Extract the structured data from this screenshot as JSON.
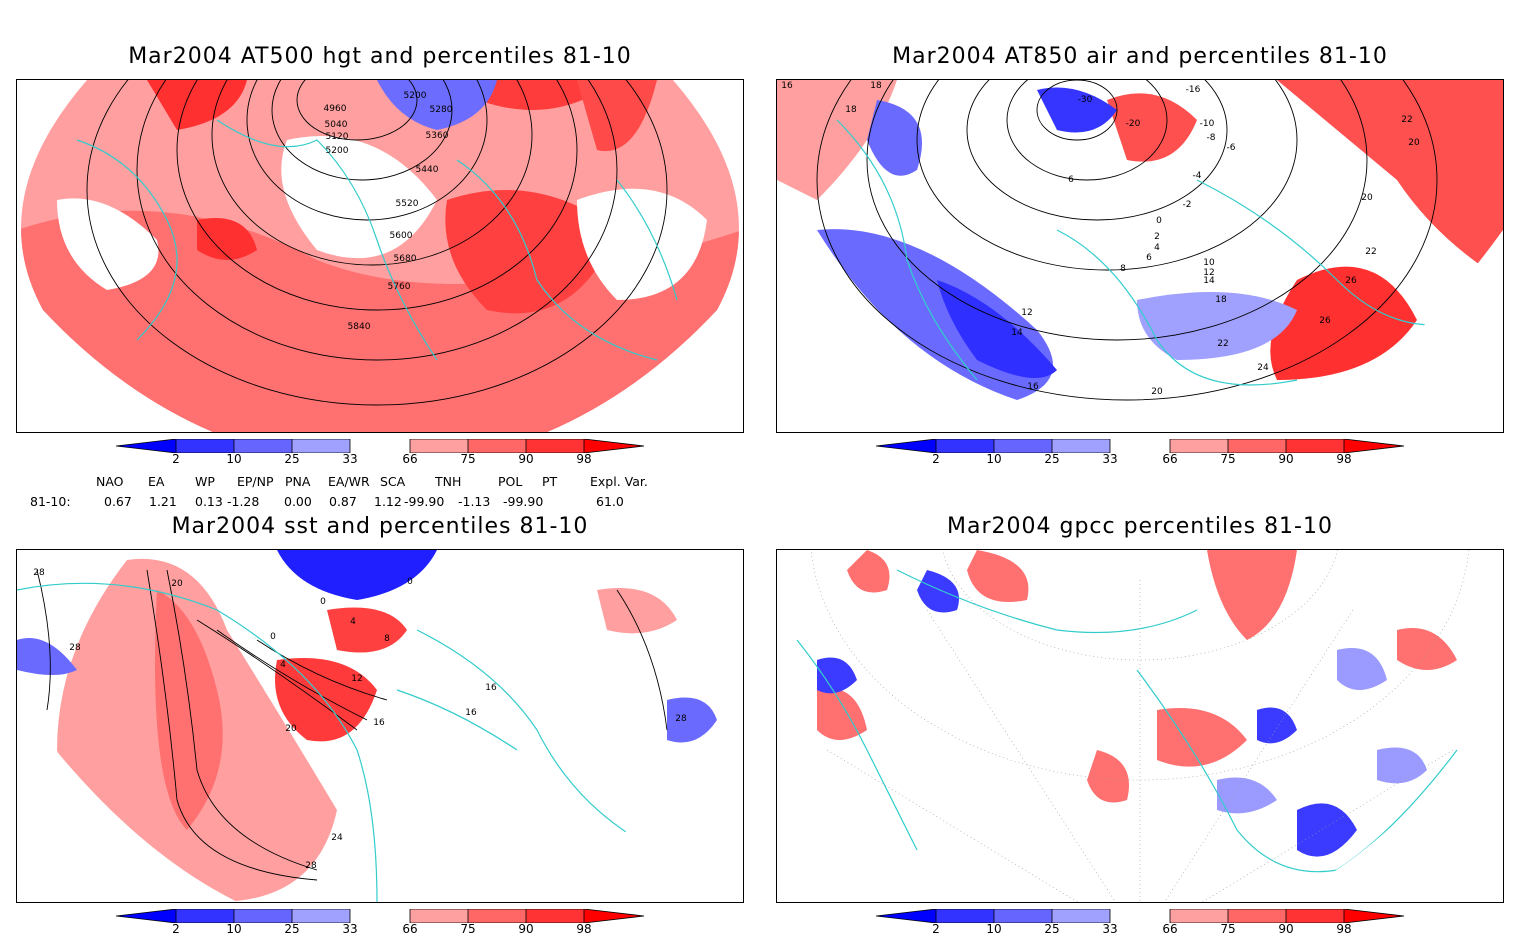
{
  "panels": [
    {
      "title": "Mar2004 AT500 hgt and percentiles 81-10",
      "contour_labels": [
        "4960",
        "5040",
        "5120",
        "5200",
        "5200",
        "5280",
        "5360",
        "5440",
        "5520",
        "5600",
        "5680",
        "5760",
        "5840"
      ]
    },
    {
      "title": "Mar2004 AT850 air and percentiles 81-10",
      "contour_labels": [
        "-30",
        "-20",
        "-16",
        "-10",
        "-8",
        "-6",
        "-4",
        "-2",
        "0",
        "2",
        "4",
        "6",
        "6",
        "8",
        "10",
        "12",
        "12",
        "14",
        "14",
        "16",
        "16",
        "18",
        "18",
        "18",
        "20",
        "20",
        "20",
        "22",
        "22",
        "22",
        "24",
        "26",
        "26"
      ]
    },
    {
      "title": "Mar2004 sst and percentiles 81-10",
      "contour_labels": [
        "28",
        "28",
        "20",
        "0",
        "0",
        "0",
        "4",
        "4",
        "8",
        "12",
        "16",
        "20",
        "16",
        "16",
        "24",
        "28",
        "28"
      ]
    },
    {
      "title": "Mar2004 gpcc percentiles 81-10",
      "contour_labels": []
    }
  ],
  "colorbar": {
    "labels": [
      "2",
      "10",
      "25",
      "33",
      "66",
      "75",
      "90",
      "98"
    ],
    "colors": {
      "blue_extreme": "#0000ff",
      "blue_dark": "#3333ff",
      "blue_mid": "#6666ff",
      "blue_light": "#a0a0ff",
      "red_light": "#ffa0a0",
      "red_mid": "#ff6666",
      "red_dark": "#ff3333",
      "red_extreme": "#ff0000"
    }
  },
  "indices": {
    "headers": [
      "NAO",
      "EA",
      "WP",
      "EP/NP",
      "PNA",
      "EA/WR",
      "SCA",
      "TNH",
      "POL",
      "PT",
      "Expl. Var."
    ],
    "row_label": "81-10:",
    "values": [
      "0.67",
      "1.21",
      "0.13",
      "-1.28",
      "0.00",
      "0.87",
      "1.12",
      "-99.90",
      "-1.13",
      "-99.90",
      "61.0"
    ]
  },
  "colors": {
    "coastline": "#33cccc",
    "contour": "#000000"
  }
}
